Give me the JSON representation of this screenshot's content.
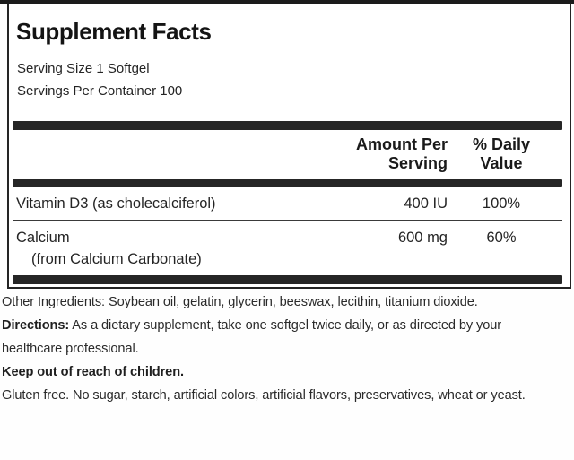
{
  "facts": {
    "title": "Supplement Facts",
    "serving_size": "Serving Size 1 Softgel",
    "servings_per_container": "Servings Per Container 100",
    "columns": {
      "amount_line1": "Amount Per",
      "amount_line2": "Serving",
      "daily_line1": "% Daily",
      "daily_line2": "Value"
    },
    "rows": [
      {
        "name": "Vitamin D3 (as cholecalciferol)",
        "amount": "400 IU",
        "daily": "100%"
      },
      {
        "name": "Calcium",
        "name_sub": "(from Calcium Carbonate)",
        "amount": "600 mg",
        "daily": "60%"
      }
    ]
  },
  "footer": {
    "other_ingredients": "Other Ingredients: Soybean oil, gelatin, glycerin, beeswax, lecithin, titanium dioxide.",
    "directions_label": "Directions:",
    "directions_text": " As a dietary supplement, take one softgel twice daily, or as directed by your healthcare professional.",
    "keep_out": "Keep out of reach of children.",
    "gluten_free": "Gluten free. No sugar, starch, artificial colors, artificial flavors, preservatives, wheat or yeast."
  },
  "colors": {
    "ink": "#212121",
    "bar": "#262626",
    "border": "#242424",
    "background": "#ffffff"
  }
}
